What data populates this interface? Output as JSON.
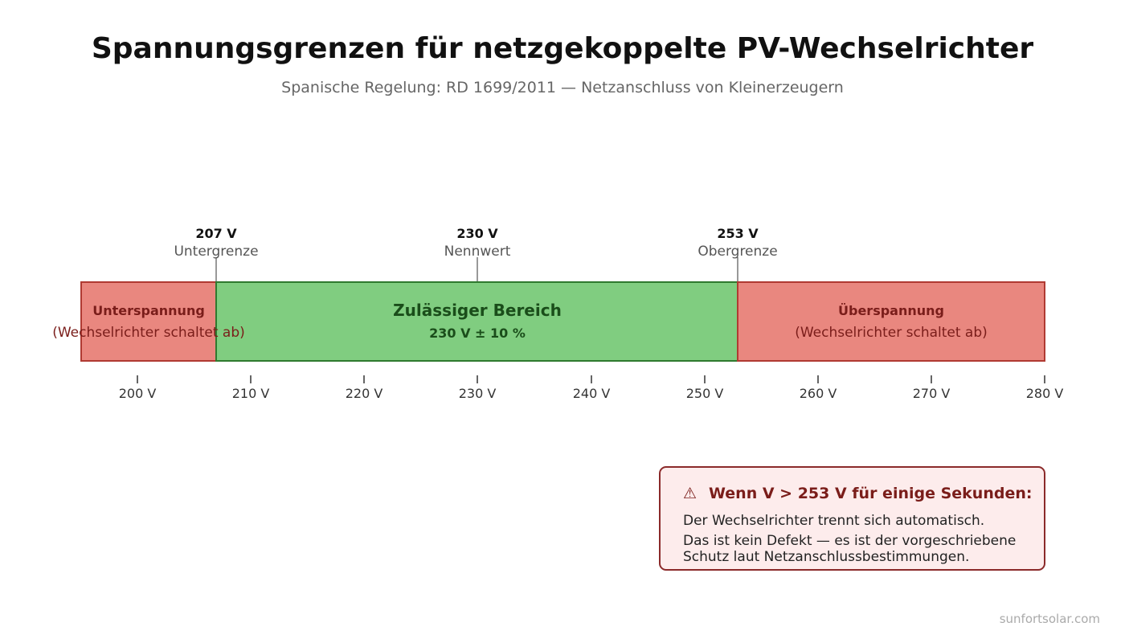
{
  "title": "Spannungsgrenzen für netzgekoppelte PV-Wechselrichter",
  "subtitle": "Spanische Regelung: RD 1699/2011 — Netzanschluss von Kleinerzeugern",
  "zones": {
    "under": {
      "title": "Unterspannung",
      "subtitle": "(Wechselrichter schaltet ab)"
    },
    "allowed": {
      "title": "Zulässiger Bereich",
      "subtitle": "230 V ± 10 %"
    },
    "over": {
      "title": "Überspannung",
      "subtitle": "(Wechselrichter schaltet ab)"
    }
  },
  "markers": [
    {
      "value": "207 V",
      "label": "Untergrenze"
    },
    {
      "value": "230 V",
      "label": "Nennwert"
    },
    {
      "value": "253 V",
      "label": "Obergrenze"
    }
  ],
  "ticks": [
    "200 V",
    "210 V",
    "220 V",
    "230 V",
    "240 V",
    "250 V",
    "260 V",
    "270 V",
    "280 V"
  ],
  "warning": {
    "icon": "warning-triangle-icon",
    "symbol": "⚠",
    "title": "Wenn V > 253 V für einige Sekunden:",
    "line1": "Der Wechselrichter trennt sich automatisch.",
    "line2": "Das ist kein Defekt — es ist der vorgeschriebene",
    "line3": "Schutz laut Netzanschlussbestimmungen."
  },
  "footer": "sunfortsolar.com",
  "colors": {
    "under_fill": "#e9877f",
    "under_stroke": "#b03a32",
    "under_text": "#7a1d1a",
    "allowed_fill": "#80cd80",
    "allowed_stroke": "#2f7a2f",
    "allowed_text": "#1a4d1a",
    "warning_bg": "#fdecec",
    "warning_border": "#8b2a2a",
    "warning_title": "#7a1d1a"
  }
}
